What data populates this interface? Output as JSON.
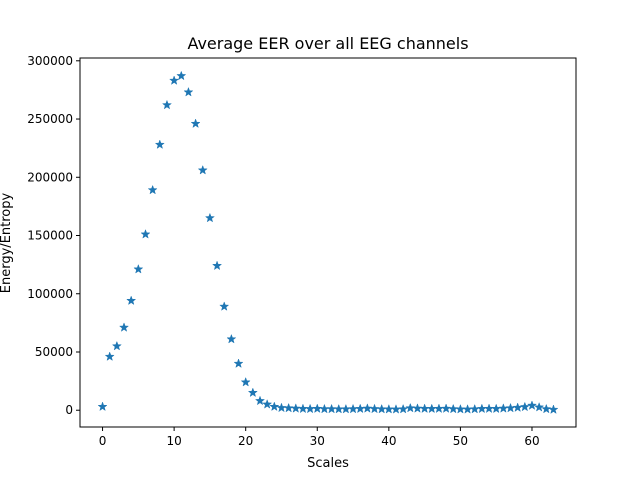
{
  "chart_data": {
    "type": "scatter",
    "title": "Average EER over all EEG channels",
    "xlabel": "Scales",
    "ylabel": "Energy/Entropy",
    "xlim": [
      -3.15,
      66.15
    ],
    "ylim": [
      -14400,
      302400
    ],
    "xticks": [
      0,
      10,
      20,
      30,
      40,
      50,
      60
    ],
    "yticks": [
      0,
      50000,
      100000,
      150000,
      200000,
      250000,
      300000
    ],
    "grid": false,
    "marker": "star",
    "color": "#1f77b4",
    "series": [
      {
        "x": [
          0,
          1,
          2,
          3,
          4,
          5,
          6,
          7,
          8,
          9,
          10,
          11,
          12,
          13,
          14,
          15,
          16,
          17,
          18,
          19,
          20,
          21,
          22,
          23,
          24,
          25,
          26,
          27,
          28,
          29,
          30,
          31,
          32,
          33,
          34,
          35,
          36,
          37,
          38,
          39,
          40,
          41,
          42,
          43,
          44,
          45,
          46,
          47,
          48,
          49,
          50,
          51,
          52,
          53,
          54,
          55,
          56,
          57,
          58,
          59,
          60,
          61,
          62,
          63
        ],
        "y": [
          3000,
          46000,
          55000,
          71000,
          94000,
          121000,
          151000,
          189000,
          228000,
          262000,
          283000,
          287000,
          273000,
          246000,
          206000,
          165000,
          124000,
          89000,
          61000,
          40000,
          24000,
          15000,
          8000,
          5000,
          3000,
          2000,
          1800,
          1500,
          1200,
          1100,
          1300,
          1000,
          1000,
          900,
          900,
          1000,
          1200,
          1500,
          1100,
          900,
          800,
          700,
          900,
          1800,
          1500,
          1300,
          1200,
          1300,
          1400,
          1000,
          800,
          700,
          900,
          1200,
          1300,
          1200,
          1500,
          1800,
          2200,
          2800,
          4000,
          2500,
          1000,
          500
        ]
      }
    ]
  }
}
